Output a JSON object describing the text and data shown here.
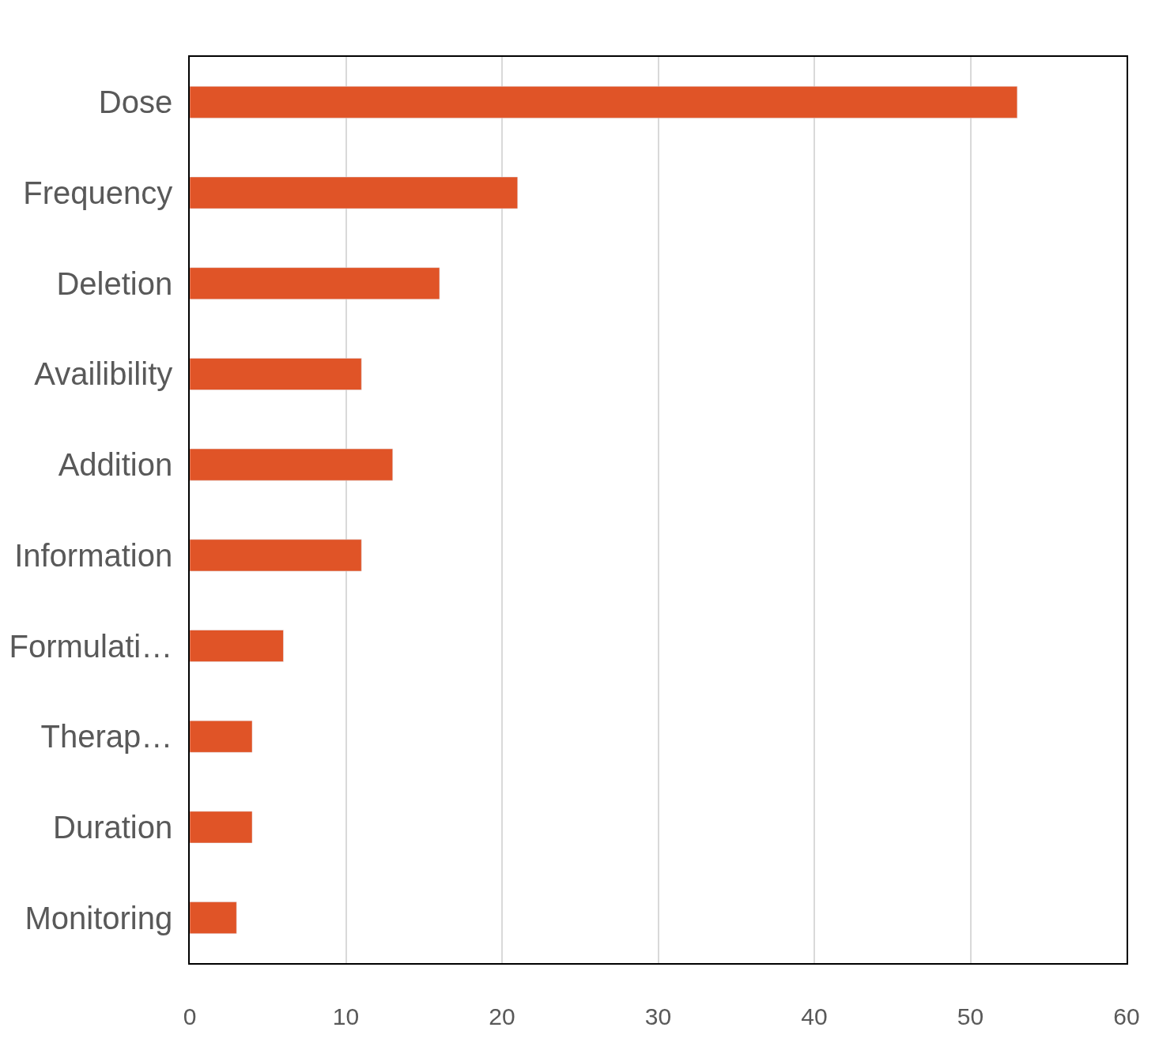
{
  "chart_data": {
    "type": "bar",
    "orientation": "horizontal",
    "categories": [
      "Dose",
      "Frequency",
      "Deletion",
      "Availibility",
      "Addition",
      "Information",
      "Formulati…",
      "Therap…",
      "Duration",
      "Monitoring"
    ],
    "values": [
      53,
      21,
      16,
      11,
      13,
      11,
      6,
      4,
      4,
      3
    ],
    "color": "#e05427",
    "xlim": [
      0,
      60
    ],
    "xticks": [
      0,
      10,
      20,
      30,
      40,
      50,
      60
    ],
    "grid": "x"
  }
}
